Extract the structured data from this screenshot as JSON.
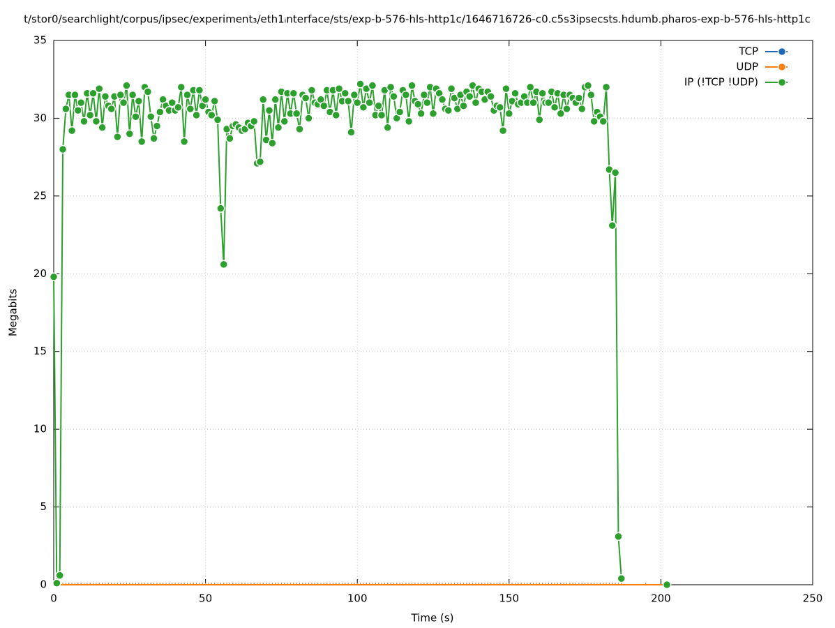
{
  "chart_data": {
    "type": "line",
    "title": "t/stor0/searchlight/corpus/ipsec/experiment₃/eth1ᵢnterface/sts/exp-b-576-hls-http1c/1646716726-c0.c5s3ipsecsts.hdumb.pharos-exp-b-576-hls-http1c",
    "x_label": "Time (s)",
    "y_label": "Megabits",
    "xlim": [
      0,
      250
    ],
    "xticks": [
      0,
      50,
      100,
      150,
      200,
      250
    ],
    "ylim": [
      0,
      35
    ],
    "yticks": [
      0,
      5,
      10,
      15,
      20,
      25,
      30,
      35
    ],
    "grid": true,
    "legend": "top-right",
    "x": [
      0,
      1,
      2,
      3,
      4,
      5,
      6,
      7,
      8,
      9,
      10,
      11,
      12,
      13,
      14,
      15,
      16,
      17,
      18,
      19,
      20,
      21,
      22,
      23,
      24,
      25,
      26,
      27,
      28,
      29,
      30,
      31,
      32,
      33,
      34,
      35,
      36,
      37,
      38,
      39,
      40,
      41,
      42,
      43,
      44,
      45,
      46,
      47,
      48,
      49,
      50,
      51,
      52,
      53,
      54,
      55,
      56,
      57,
      58,
      59,
      60,
      61,
      62,
      63,
      64,
      65,
      66,
      67,
      68,
      69,
      70,
      71,
      72,
      73,
      74,
      75,
      76,
      77,
      78,
      79,
      80,
      81,
      82,
      83,
      84,
      85,
      86,
      87,
      88,
      89,
      90,
      91,
      92,
      93,
      94,
      95,
      96,
      97,
      98,
      99,
      100,
      101,
      102,
      103,
      104,
      105,
      106,
      107,
      108,
      109,
      110,
      111,
      112,
      113,
      114,
      115,
      116,
      117,
      118,
      119,
      120,
      121,
      122,
      123,
      124,
      125,
      126,
      127,
      128,
      129,
      130,
      131,
      132,
      133,
      134,
      135,
      136,
      137,
      138,
      139,
      140,
      141,
      142,
      143,
      144,
      145,
      146,
      147,
      148,
      149,
      150,
      151,
      152,
      153,
      154,
      155,
      156,
      157,
      158,
      159,
      160,
      161,
      162,
      163,
      164,
      165,
      166,
      167,
      168,
      169,
      170,
      171,
      172,
      173,
      174,
      175,
      176,
      177,
      178,
      179,
      180,
      181,
      182,
      183,
      184,
      185,
      186,
      187,
      195,
      202
    ],
    "series": [
      {
        "name": "TCP",
        "color": "#1f66b4",
        "values": [
          0,
          0,
          0,
          0,
          0,
          0,
          0,
          0,
          0,
          0,
          0,
          0,
          0,
          0,
          0,
          0,
          0,
          0,
          0,
          0,
          0,
          0,
          0,
          0,
          0,
          0,
          0,
          0,
          0,
          0,
          0,
          0,
          0,
          0,
          0,
          0,
          0,
          0,
          0,
          0,
          0,
          0,
          0,
          0,
          0,
          0,
          0,
          0,
          0,
          0,
          0,
          0,
          0,
          0,
          0,
          0,
          0,
          0,
          0,
          0,
          0,
          0,
          0,
          0,
          0,
          0,
          0,
          0,
          0,
          0,
          0,
          0,
          0,
          0,
          0,
          0,
          0,
          0,
          0,
          0,
          0,
          0,
          0,
          0,
          0,
          0,
          0,
          0,
          0,
          0,
          0,
          0,
          0,
          0,
          0,
          0,
          0,
          0,
          0,
          0,
          0,
          0,
          0,
          0,
          0,
          0,
          0,
          0,
          0,
          0,
          0,
          0,
          0,
          0,
          0,
          0,
          0,
          0,
          0,
          0,
          0,
          0,
          0,
          0,
          0,
          0,
          0,
          0,
          0,
          0,
          0,
          0,
          0,
          0,
          0,
          0,
          0,
          0,
          0,
          0,
          0,
          0,
          0,
          0,
          0,
          0,
          0,
          0,
          0,
          0,
          0,
          0,
          0,
          0,
          0,
          0,
          0,
          0,
          0,
          0,
          0,
          0,
          0,
          0,
          0,
          0,
          0,
          0,
          0,
          0,
          0,
          0,
          0,
          0,
          0,
          0,
          0,
          0,
          0,
          0,
          0,
          0,
          0,
          0,
          0,
          0,
          0,
          0,
          0,
          0
        ]
      },
      {
        "name": "UDP",
        "color": "#ff7f0e",
        "values": [
          0,
          0,
          0,
          0,
          0,
          0,
          0,
          0,
          0,
          0,
          0,
          0,
          0,
          0,
          0,
          0,
          0,
          0,
          0,
          0,
          0,
          0,
          0,
          0,
          0,
          0,
          0,
          0,
          0,
          0,
          0,
          0,
          0,
          0,
          0,
          0,
          0,
          0,
          0,
          0,
          0,
          0,
          0,
          0,
          0,
          0,
          0,
          0,
          0,
          0,
          0,
          0,
          0,
          0,
          0,
          0,
          0,
          0,
          0,
          0,
          0,
          0,
          0,
          0,
          0,
          0,
          0,
          0,
          0,
          0,
          0,
          0,
          0,
          0,
          0,
          0,
          0,
          0,
          0,
          0,
          0,
          0,
          0,
          0,
          0,
          0,
          0,
          0,
          0,
          0,
          0,
          0,
          0,
          0,
          0,
          0,
          0,
          0,
          0,
          0,
          0,
          0,
          0,
          0,
          0,
          0,
          0,
          0,
          0,
          0,
          0,
          0,
          0,
          0,
          0,
          0,
          0,
          0,
          0,
          0,
          0,
          0,
          0,
          0,
          0,
          0,
          0,
          0,
          0,
          0,
          0,
          0,
          0,
          0,
          0,
          0,
          0,
          0,
          0,
          0,
          0,
          0,
          0,
          0,
          0,
          0,
          0,
          0,
          0,
          0,
          0,
          0,
          0,
          0,
          0,
          0,
          0,
          0,
          0,
          0,
          0,
          0,
          0,
          0,
          0,
          0,
          0,
          0,
          0,
          0,
          0,
          0,
          0,
          0,
          0,
          0,
          0,
          0,
          0,
          0,
          0,
          0,
          0,
          0,
          0,
          0,
          0,
          0,
          0,
          0
        ]
      },
      {
        "name": "IP (!TCP  !UDP)",
        "color": "#2ca02c",
        "values": [
          19.8,
          0.1,
          0.6,
          28,
          30.6,
          31.5,
          29.2,
          31.5,
          30.5,
          31,
          29.8,
          31.6,
          30.2,
          31.6,
          29.8,
          31.9,
          29.4,
          31.4,
          30.8,
          30.6,
          31.4,
          28.8,
          31.5,
          31,
          32.1,
          29,
          31.5,
          30.1,
          31.1,
          28.5,
          32,
          31.7,
          30.1,
          28.7,
          29.5,
          30.4,
          31.2,
          30.8,
          30.5,
          31,
          30.5,
          30.7,
          32,
          28.5,
          31.5,
          30.6,
          31.8,
          30.2,
          31.8,
          30.8,
          31.2,
          30.4,
          30.2,
          31.1,
          29.9,
          24.2,
          20.6,
          29.3,
          28.7,
          29.5,
          29.6,
          29.4,
          29.2,
          29.3,
          29.7,
          29.5,
          29.8,
          27.1,
          27.2,
          31.2,
          28.6,
          30.5,
          28.4,
          31.2,
          29.4,
          31.7,
          29.8,
          31.6,
          30.3,
          31.6,
          30.3,
          29.3,
          31.5,
          31.3,
          30,
          31.8,
          31,
          30.9,
          31.2,
          30.8,
          31.8,
          30.4,
          31.8,
          30.2,
          31.9,
          31.1,
          31.6,
          31.1,
          29.1,
          31.5,
          31,
          32.2,
          30.7,
          31.9,
          31,
          32.1,
          30.2,
          30.8,
          30.2,
          31.8,
          29.4,
          32,
          31.4,
          30,
          30.4,
          31.8,
          31.5,
          29.8,
          32.1,
          31.1,
          30.9,
          30.3,
          31.5,
          31,
          32,
          30.3,
          31.9,
          31.6,
          31.2,
          30.6,
          30.5,
          31.9,
          31.3,
          30.6,
          31.5,
          30.8,
          31.7,
          31.4,
          32.1,
          31,
          31.9,
          31.7,
          31.2,
          31.7,
          31.4,
          30.5,
          30.8,
          30.7,
          29.2,
          31.9,
          30.3,
          31.1,
          31.6,
          30.9,
          31,
          31.4,
          31,
          32,
          31,
          31.7,
          29.9,
          31.6,
          31,
          31,
          31.7,
          30.7,
          31.6,
          30.3,
          31.5,
          30.6,
          31.5,
          31.3,
          31,
          31.3,
          30.6,
          32,
          32.1,
          31.5,
          29.8,
          30.4,
          30.1,
          29.8,
          32,
          26.7,
          23.1,
          26.5,
          3.1,
          0.4,
          null,
          0
        ]
      }
    ]
  }
}
